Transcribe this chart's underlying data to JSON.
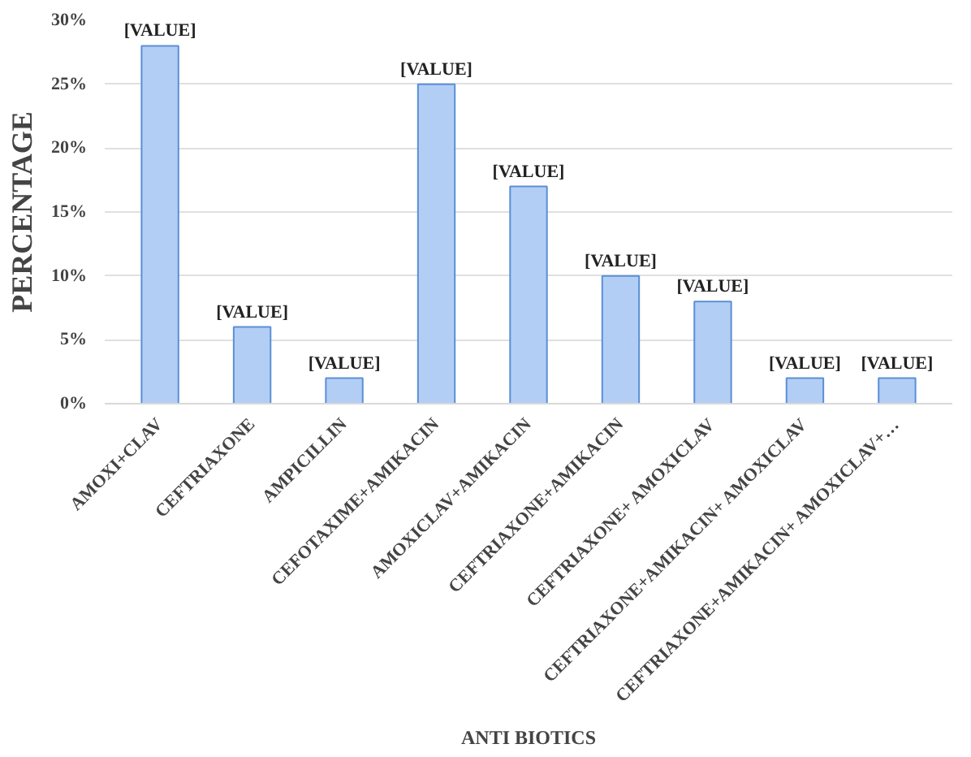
{
  "chart_data": {
    "type": "bar",
    "xlabel": "ANTI BIOTICS",
    "ylabel": "PERCENTAGE",
    "categories": [
      "AMOXI+CLAV",
      "CEFTRIAXONE",
      "AMPICILLIN",
      "CEFOTAXIME+AMIKACIN",
      "AMOXICLAV+AMIKACIN",
      "CEFTRIAXONE+AMIKACIN",
      "CEFTRIAXONE+ AMOXICLAV",
      "CEFTRIAXONE+AMIKACIN+ AMOXICLAV",
      "CEFTRIAXONE+AMIKACIN+ AMOXICLAV+…"
    ],
    "values": [
      28,
      6,
      2,
      25,
      17,
      10,
      8,
      2,
      2
    ],
    "value_labels": [
      "[VALUE]",
      "[VALUE]",
      "[VALUE]",
      "[VALUE]",
      "[VALUE]",
      "[VALUE]",
      "[VALUE]",
      "[VALUE]",
      "[VALUE]"
    ],
    "color": "#b3cef5",
    "ylim": [
      0,
      30
    ],
    "yticks": [
      {
        "value": 0,
        "label": "0%"
      },
      {
        "value": 5,
        "label": "5%"
      },
      {
        "value": 10,
        "label": "10%"
      },
      {
        "value": 15,
        "label": "15%"
      },
      {
        "value": 20,
        "label": "20%"
      },
      {
        "value": 25,
        "label": "25%"
      },
      {
        "value": 30,
        "label": "30%"
      }
    ],
    "grid": "y"
  }
}
